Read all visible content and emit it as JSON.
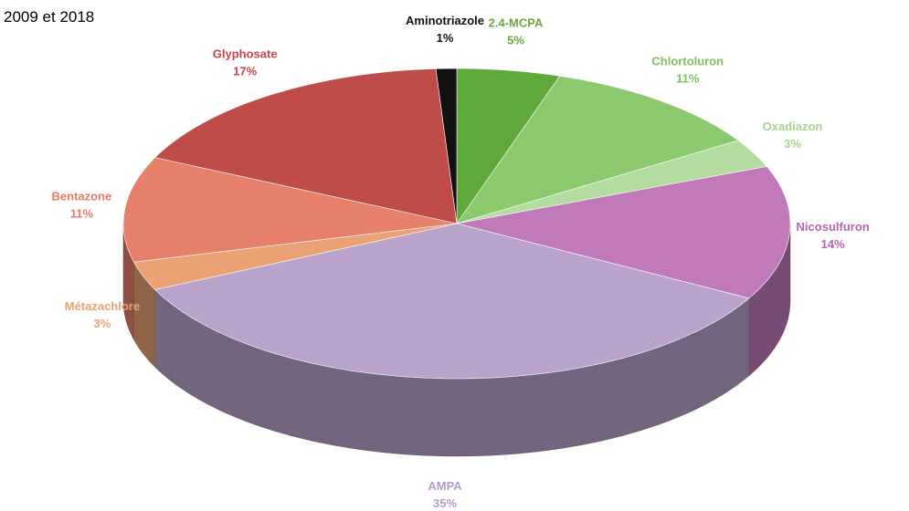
{
  "chart_data": {
    "type": "pie3d",
    "title": "2009 et 2018",
    "categories": [
      "2.4-MCPA",
      "Chlortoluron",
      "Oxadiazon",
      "Nicosulfuron",
      "AMPA",
      "Métazachlore",
      "Bentazone",
      "Glyphosate",
      "Aminotriazole"
    ],
    "values": [
      5,
      11,
      3,
      14,
      35,
      3,
      11,
      17,
      1
    ],
    "value_labels": [
      "5%",
      "11%",
      "3%",
      "14%",
      "35%",
      "3%",
      "11%",
      "17%",
      "1%"
    ],
    "colors": [
      "#5ea83c",
      "#8cc86e",
      "#b5dca0",
      "#c07ab9",
      "#b9a3ca",
      "#eaa274",
      "#e6806b",
      "#c04c49",
      "#111111"
    ],
    "label_colors": [
      "#6aa83c",
      "#7ec25e",
      "#a6d48e",
      "#b763b0",
      "#b49ccb",
      "#eaa274",
      "#e8796a",
      "#c9454a",
      "#111111"
    ]
  }
}
